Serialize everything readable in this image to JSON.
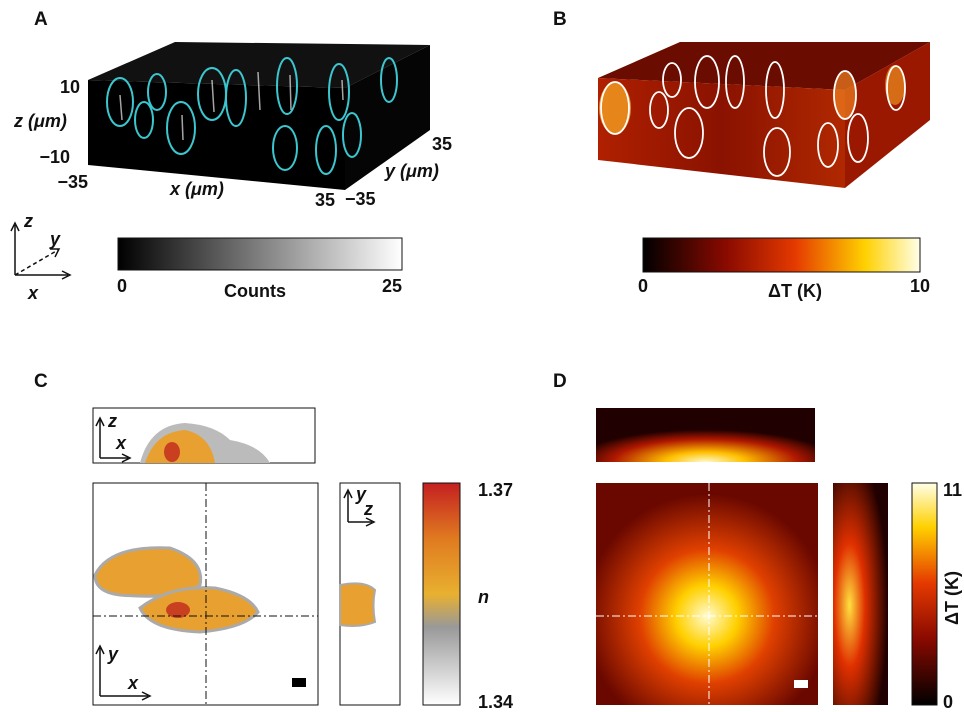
{
  "panel_a": {
    "label": "A",
    "z_label": "z (μm)",
    "z_ticks": [
      "10",
      "−10"
    ],
    "x_label": "x (μm)",
    "x_ticks": [
      "−35",
      "35"
    ],
    "y_label": "y (μm)",
    "y_ticks": [
      "35",
      "−35"
    ],
    "triad": {
      "z": "z",
      "y": "y",
      "x": "x"
    },
    "colorbar": {
      "min": "0",
      "label": "Counts",
      "max": "25"
    }
  },
  "panel_b": {
    "label": "B",
    "colorbar": {
      "min": "0",
      "label": "ΔT (K)",
      "max": "10"
    }
  },
  "panel_c": {
    "label": "C",
    "top_axes": {
      "z": "z",
      "x": "x"
    },
    "side_axes": {
      "y": "y",
      "z": "z"
    },
    "main_axes": {
      "y": "y",
      "x": "x"
    },
    "colorbar": {
      "max": "1.37",
      "label": "n",
      "min": "1.34"
    }
  },
  "panel_d": {
    "label": "D",
    "colorbar": {
      "max": "11",
      "label": "ΔT (K)",
      "min": "0"
    }
  }
}
